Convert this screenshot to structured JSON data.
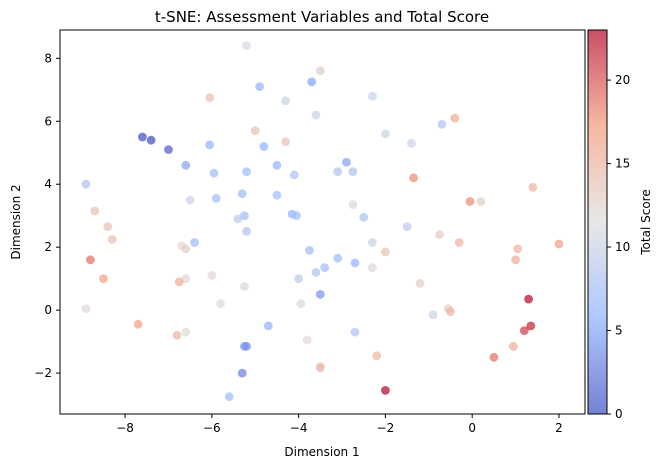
{
  "chart_data": {
    "type": "scatter",
    "title": "t-SNE: Assessment Variables and Total Score",
    "xlabel": "Dimension 1",
    "ylabel": "Dimension 2",
    "xlim": [
      -9.5,
      2.6
    ],
    "ylim": [
      -3.3,
      8.9
    ],
    "xticks": [
      -8,
      -6,
      -4,
      -2,
      0,
      2
    ],
    "yticks": [
      -2,
      0,
      2,
      4,
      6,
      8
    ],
    "colorbar": {
      "label": "Total Score",
      "range": [
        0,
        23
      ],
      "ticks": [
        0,
        5,
        10,
        15,
        20
      ],
      "colormap": "coolwarm"
    },
    "grid": false,
    "marker_alpha": 0.7,
    "points": [
      {
        "x": -7.6,
        "y": 5.5,
        "score": 0
      },
      {
        "x": -7.4,
        "y": 5.4,
        "score": 0
      },
      {
        "x": -7.0,
        "y": 5.1,
        "score": 1
      },
      {
        "x": -5.3,
        "y": -2.0,
        "score": 3
      },
      {
        "x": -5.2,
        "y": -1.15,
        "score": 4
      },
      {
        "x": -5.25,
        "y": -1.15,
        "score": 4
      },
      {
        "x": -3.5,
        "y": 0.5,
        "score": 4
      },
      {
        "x": -2.9,
        "y": 4.7,
        "score": 5
      },
      {
        "x": -3.7,
        "y": 7.25,
        "score": 5
      },
      {
        "x": -6.6,
        "y": 4.6,
        "score": 5
      },
      {
        "x": -6.05,
        "y": 5.25,
        "score": 6
      },
      {
        "x": -4.8,
        "y": 5.2,
        "score": 6
      },
      {
        "x": -4.5,
        "y": 4.6,
        "score": 6
      },
      {
        "x": -4.9,
        "y": 7.1,
        "score": 6
      },
      {
        "x": -4.15,
        "y": 3.05,
        "score": 6
      },
      {
        "x": -4.7,
        "y": -0.5,
        "score": 6
      },
      {
        "x": -2.7,
        "y": 1.5,
        "score": 6
      },
      {
        "x": -5.95,
        "y": 4.35,
        "score": 7
      },
      {
        "x": -5.9,
        "y": 3.55,
        "score": 7
      },
      {
        "x": -5.2,
        "y": 4.4,
        "score": 7
      },
      {
        "x": -5.3,
        "y": 3.7,
        "score": 7
      },
      {
        "x": -4.5,
        "y": 3.65,
        "score": 7
      },
      {
        "x": -4.05,
        "y": 3.0,
        "score": 7
      },
      {
        "x": -5.25,
        "y": 3.0,
        "score": 7
      },
      {
        "x": -3.75,
        "y": 1.9,
        "score": 7
      },
      {
        "x": -3.4,
        "y": 1.35,
        "score": 7
      },
      {
        "x": -3.1,
        "y": 1.65,
        "score": 7
      },
      {
        "x": -6.4,
        "y": 2.15,
        "score": 7
      },
      {
        "x": -5.6,
        "y": -2.75,
        "score": 7
      },
      {
        "x": -3.6,
        "y": 1.2,
        "score": 8
      },
      {
        "x": -2.75,
        "y": 4.4,
        "score": 8
      },
      {
        "x": -3.1,
        "y": 4.4,
        "score": 8
      },
      {
        "x": -4.1,
        "y": 4.3,
        "score": 8
      },
      {
        "x": -2.5,
        "y": 2.95,
        "score": 8
      },
      {
        "x": -2.7,
        "y": -0.7,
        "score": 8
      },
      {
        "x": -8.9,
        "y": 4.0,
        "score": 8
      },
      {
        "x": -5.2,
        "y": 2.5,
        "score": 8
      },
      {
        "x": -0.7,
        "y": 5.9,
        "score": 8
      },
      {
        "x": -4.0,
        "y": 1.0,
        "score": 9
      },
      {
        "x": -1.5,
        "y": 2.65,
        "score": 9
      },
      {
        "x": -5.4,
        "y": 2.9,
        "score": 9
      },
      {
        "x": -2.3,
        "y": 2.15,
        "score": 10
      },
      {
        "x": -0.9,
        "y": -0.15,
        "score": 10
      },
      {
        "x": -3.6,
        "y": 6.2,
        "score": 10
      },
      {
        "x": -2.3,
        "y": 6.8,
        "score": 10
      },
      {
        "x": -4.3,
        "y": 6.65,
        "score": 10
      },
      {
        "x": -2.0,
        "y": 5.6,
        "score": 10
      },
      {
        "x": -1.4,
        "y": 5.3,
        "score": 10
      },
      {
        "x": -6.5,
        "y": 3.5,
        "score": 10
      },
      {
        "x": -5.2,
        "y": 8.4,
        "score": 11
      },
      {
        "x": -2.75,
        "y": 3.35,
        "score": 11
      },
      {
        "x": -5.8,
        "y": 0.2,
        "score": 11
      },
      {
        "x": -3.95,
        "y": 0.2,
        "score": 11
      },
      {
        "x": -3.5,
        "y": -1.85,
        "score": 11
      },
      {
        "x": -3.8,
        "y": -0.95,
        "score": 12
      },
      {
        "x": -2.3,
        "y": 1.35,
        "score": 12
      },
      {
        "x": -5.25,
        "y": 0.75,
        "score": 12
      },
      {
        "x": -6.0,
        "y": 1.1,
        "score": 12
      },
      {
        "x": -6.7,
        "y": 2.05,
        "score": 12
      },
      {
        "x": -6.6,
        "y": 1.0,
        "score": 12
      },
      {
        "x": -8.9,
        "y": 0.05,
        "score": 12
      },
      {
        "x": -6.6,
        "y": -0.7,
        "score": 12
      },
      {
        "x": -3.5,
        "y": 7.6,
        "score": 13
      },
      {
        "x": -0.75,
        "y": 2.4,
        "score": 13
      },
      {
        "x": -0.55,
        "y": 0.05,
        "score": 13
      },
      {
        "x": -1.2,
        "y": 0.85,
        "score": 13
      },
      {
        "x": 0.2,
        "y": 3.45,
        "score": 13
      },
      {
        "x": -6.6,
        "y": 1.95,
        "score": 13
      },
      {
        "x": -2.0,
        "y": 1.85,
        "score": 14
      },
      {
        "x": -4.3,
        "y": 5.35,
        "score": 14
      },
      {
        "x": -6.05,
        "y": 6.75,
        "score": 14
      },
      {
        "x": -5.0,
        "y": 5.7,
        "score": 14
      },
      {
        "x": -8.7,
        "y": 3.15,
        "score": 14
      },
      {
        "x": -8.4,
        "y": 2.65,
        "score": 14
      },
      {
        "x": -8.3,
        "y": 2.25,
        "score": 14
      },
      {
        "x": -2.2,
        "y": -1.45,
        "score": 15
      },
      {
        "x": 1.4,
        "y": 3.9,
        "score": 15
      },
      {
        "x": 1.05,
        "y": 1.95,
        "score": 15
      },
      {
        "x": -0.3,
        "y": 2.15,
        "score": 15
      },
      {
        "x": -0.5,
        "y": -0.05,
        "score": 15
      },
      {
        "x": -3.5,
        "y": -1.8,
        "score": 15
      },
      {
        "x": -6.8,
        "y": -0.8,
        "score": 15
      },
      {
        "x": -6.75,
        "y": 0.9,
        "score": 16
      },
      {
        "x": 0.95,
        "y": -1.15,
        "score": 16
      },
      {
        "x": 1.0,
        "y": 1.6,
        "score": 16
      },
      {
        "x": -0.4,
        "y": 6.1,
        "score": 16
      },
      {
        "x": -8.5,
        "y": 1.0,
        "score": 17
      },
      {
        "x": -7.7,
        "y": -0.45,
        "score": 17
      },
      {
        "x": 2.0,
        "y": 2.1,
        "score": 17
      },
      {
        "x": -0.05,
        "y": 3.45,
        "score": 18
      },
      {
        "x": -1.35,
        "y": 4.2,
        "score": 18
      },
      {
        "x": 0.5,
        "y": -1.5,
        "score": 19
      },
      {
        "x": -8.8,
        "y": 1.6,
        "score": 19
      },
      {
        "x": 1.2,
        "y": -0.65,
        "score": 21
      },
      {
        "x": 1.35,
        "y": -0.5,
        "score": 22
      },
      {
        "x": 1.3,
        "y": 0.35,
        "score": 23
      },
      {
        "x": -2.0,
        "y": -2.55,
        "score": 23
      }
    ]
  }
}
